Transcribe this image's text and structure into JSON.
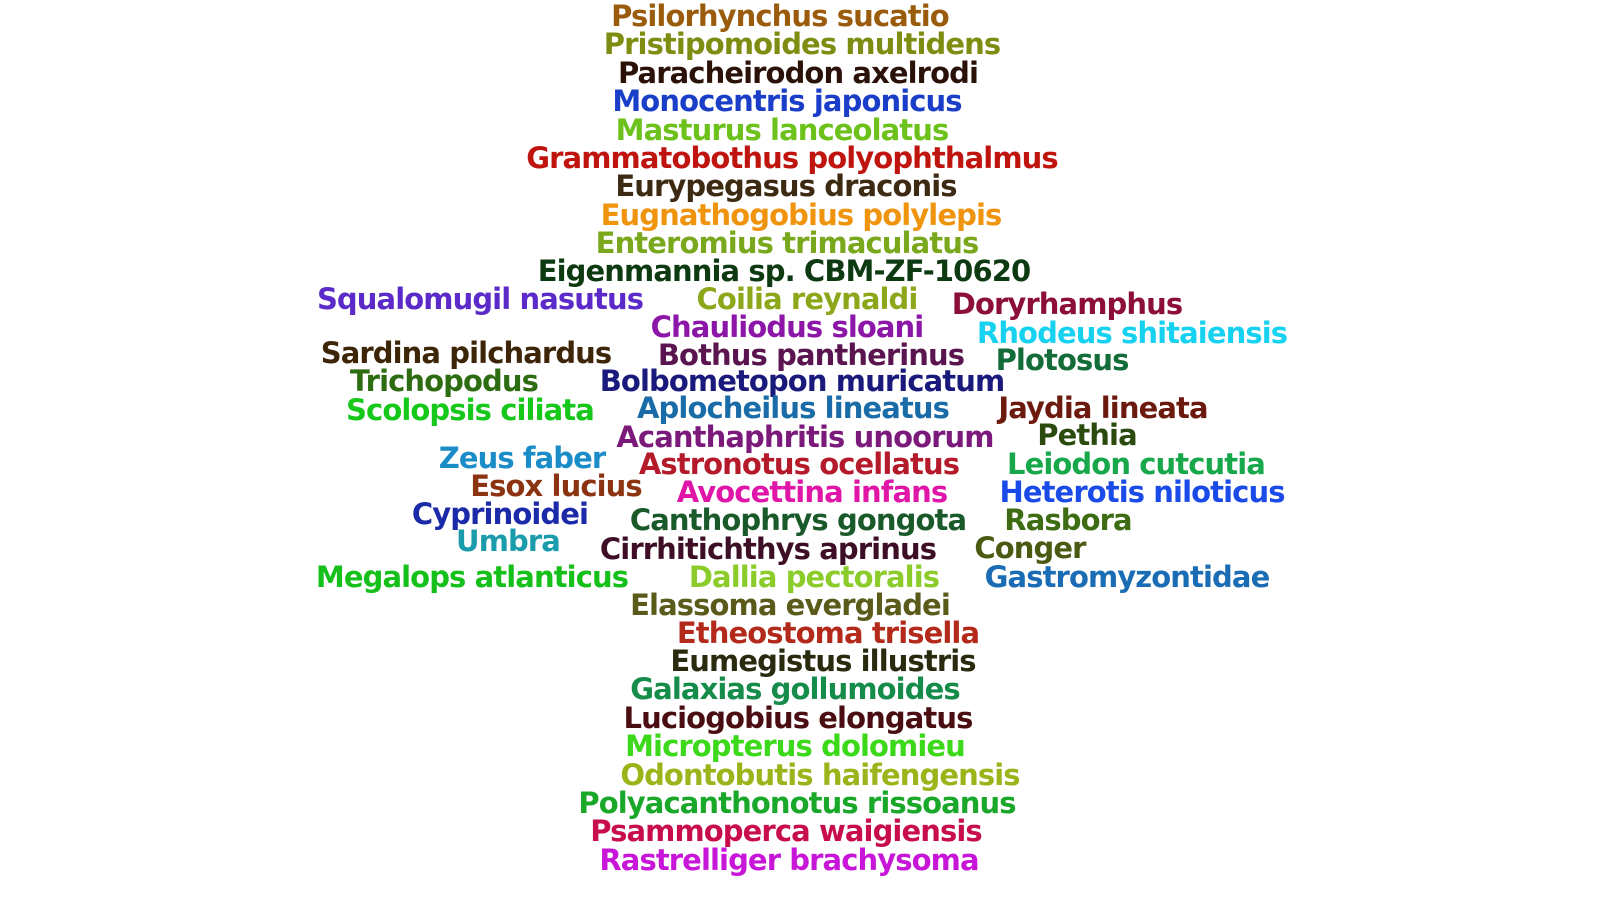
{
  "word_cloud": {
    "words": [
      {
        "text": "Psilorhynchus sucatio",
        "color": "#9a5b0c"
      },
      {
        "text": "Pristipomoides multidens",
        "color": "#7f8c12"
      },
      {
        "text": "Paracheirodon axelrodi",
        "color": "#2a1208"
      },
      {
        "text": "Monocentris japonicus",
        "color": "#1a3ec8"
      },
      {
        "text": "Masturus lanceolatus",
        "color": "#6cc21a"
      },
      {
        "text": "Grammatobothus polyophthalmus",
        "color": "#c0140e"
      },
      {
        "text": "Eurypegasus draconis",
        "color": "#3d2a12"
      },
      {
        "text": "Eugnathogobius polylepis",
        "color": "#f0940e"
      },
      {
        "text": "Enteromius trimaculatus",
        "color": "#79a81c"
      },
      {
        "text": "Eigenmannia sp. CBM-ZF-10620",
        "color": "#0e3a12"
      },
      {
        "text": "Squalomugil nasutus",
        "color": "#5b2ac8"
      },
      {
        "text": "Coilia reynaldi",
        "color": "#8ca81a"
      },
      {
        "text": "Doryrhamphus",
        "color": "#8c0e3a"
      },
      {
        "text": "Chauliodus sloani",
        "color": "#8c16a8"
      },
      {
        "text": "Rhodeus shitaiensis",
        "color": "#16d2f0"
      },
      {
        "text": "Sardina pilchardus",
        "color": "#3d2608"
      },
      {
        "text": "Bothus pantherinus",
        "color": "#5a1450"
      },
      {
        "text": "Plotosus",
        "color": "#146c38"
      },
      {
        "text": "Trichopodus",
        "color": "#2e6c12"
      },
      {
        "text": "Bolbometopon muricatum",
        "color": "#1a1a7c"
      },
      {
        "text": "Scolopsis ciliata",
        "color": "#16c81a"
      },
      {
        "text": "Aplocheilus lineatus",
        "color": "#1a6ca8"
      },
      {
        "text": "Jaydia lineata",
        "color": "#6c1a0e"
      },
      {
        "text": "Acanthaphritis unoorum",
        "color": "#7c1a7c"
      },
      {
        "text": "Pethia",
        "color": "#2a4a0e"
      },
      {
        "text": "Zeus faber",
        "color": "#1a8cc8"
      },
      {
        "text": "Astronotus ocellatus",
        "color": "#b41a2a"
      },
      {
        "text": "Leiodon cutcutia",
        "color": "#16a84a"
      },
      {
        "text": "Esox lucius",
        "color": "#8c3412"
      },
      {
        "text": "Avocettina infans",
        "color": "#e016a8"
      },
      {
        "text": "Heterotis niloticus",
        "color": "#1a4ae8"
      },
      {
        "text": "Cyprinoidei",
        "color": "#1a2aa8"
      },
      {
        "text": "Canthophrys gongota",
        "color": "#1a5a2a"
      },
      {
        "text": "Rasbora",
        "color": "#3d6c12"
      },
      {
        "text": "Umbra",
        "color": "#1a9cac"
      },
      {
        "text": "Cirrhitichthys aprinus",
        "color": "#3d0e26"
      },
      {
        "text": "Conger",
        "color": "#4a5a12"
      },
      {
        "text": "Megalops atlanticus",
        "color": "#16c01a"
      },
      {
        "text": "Dallia pectoralis",
        "color": "#8ccc2a"
      },
      {
        "text": "Gastromyzontidae",
        "color": "#1a6cb4"
      },
      {
        "text": "Elassoma evergladei",
        "color": "#5a5a1a"
      },
      {
        "text": "Etheostoma trisella",
        "color": "#b42a1a"
      },
      {
        "text": "Eumegistus illustris",
        "color": "#2a2a0e"
      },
      {
        "text": "Galaxias gollumoides",
        "color": "#168c4a"
      },
      {
        "text": "Luciogobius elongatus",
        "color": "#4a0e12"
      },
      {
        "text": "Micropterus dolomieu",
        "color": "#3cd81a"
      },
      {
        "text": "Odontobutis haifengensis",
        "color": "#9cb41a"
      },
      {
        "text": "Polyacanthonotus rissoanus",
        "color": "#1aa82a"
      },
      {
        "text": "Psammoperca waigiensis",
        "color": "#c80e4a"
      },
      {
        "text": "Rastrelliger brachysoma",
        "color": "#c816d8"
      }
    ]
  }
}
